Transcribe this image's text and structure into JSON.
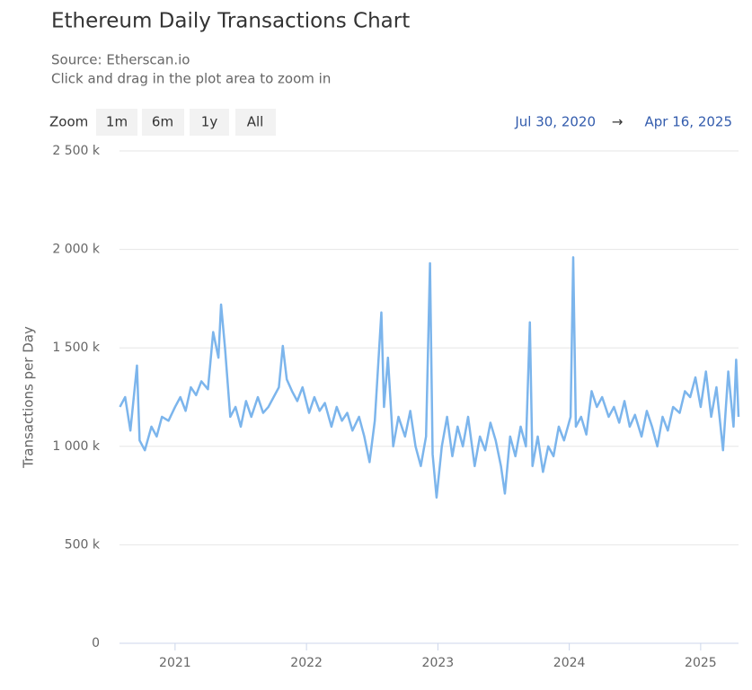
{
  "chart_data": {
    "type": "line",
    "title": "Ethereum Daily Transactions Chart",
    "subtitle": [
      "Source: Etherscan.io",
      "Click and drag in the plot area to zoom in"
    ],
    "zoom_label": "Zoom",
    "zoom_buttons": [
      "1m",
      "6m",
      "1y",
      "All"
    ],
    "range_from": "Jul 30, 2020",
    "range_separator": "→",
    "range_to": "Apr 16, 2025",
    "y_label": "Transactions per Day",
    "color": "#7cb5ec",
    "grid": true,
    "xlim": [
      2020.577,
      2025.288
    ],
    "xticks": [
      2021,
      2022,
      2023,
      2024,
      2025
    ],
    "ylim": [
      0,
      2500000
    ],
    "yticks": [
      0,
      {
        "value": 500000,
        "label": "500 k"
      },
      {
        "value": 1000000,
        "label": "1 000 k"
      },
      {
        "value": 1500000,
        "label": "1 500 k"
      },
      {
        "value": 2000000,
        "label": "2 000 k"
      },
      {
        "value": 2500000,
        "label": "2 500 k"
      }
    ],
    "x": [
      2020.58,
      2020.62,
      2020.66,
      2020.71,
      2020.73,
      2020.77,
      2020.82,
      2020.86,
      2020.9,
      2020.95,
      2021.0,
      2021.04,
      2021.08,
      2021.12,
      2021.16,
      2021.2,
      2021.25,
      2021.29,
      2021.33,
      2021.35,
      2021.38,
      2021.42,
      2021.46,
      2021.5,
      2021.54,
      2021.58,
      2021.63,
      2021.67,
      2021.71,
      2021.75,
      2021.79,
      2021.82,
      2021.85,
      2021.89,
      2021.93,
      2021.97,
      2022.02,
      2022.06,
      2022.1,
      2022.14,
      2022.19,
      2022.23,
      2022.27,
      2022.31,
      2022.35,
      2022.4,
      2022.44,
      2022.48,
      2022.52,
      2022.57,
      2022.59,
      2022.62,
      2022.66,
      2022.7,
      2022.75,
      2022.79,
      2022.83,
      2022.87,
      2022.91,
      2022.94,
      2022.96,
      2022.99,
      2023.03,
      2023.07,
      2023.11,
      2023.15,
      2023.19,
      2023.23,
      2023.28,
      2023.32,
      2023.36,
      2023.4,
      2023.44,
      2023.48,
      2023.51,
      2023.55,
      2023.59,
      2023.63,
      2023.67,
      2023.7,
      2023.72,
      2023.76,
      2023.8,
      2023.84,
      2023.88,
      2023.92,
      2023.96,
      2024.01,
      2024.03,
      2024.05,
      2024.09,
      2024.13,
      2024.17,
      2024.21,
      2024.25,
      2024.3,
      2024.34,
      2024.38,
      2024.42,
      2024.46,
      2024.5,
      2024.55,
      2024.59,
      2024.63,
      2024.67,
      2024.71,
      2024.75,
      2024.79,
      2024.84,
      2024.88,
      2024.92,
      2024.96,
      2025.0,
      2025.04,
      2025.08,
      2025.12,
      2025.17,
      2025.21,
      2025.25,
      2025.27,
      2025.288
    ],
    "values": [
      1200000,
      1250000,
      1080000,
      1410000,
      1030000,
      980000,
      1100000,
      1050000,
      1150000,
      1130000,
      1200000,
      1250000,
      1180000,
      1300000,
      1260000,
      1330000,
      1290000,
      1580000,
      1450000,
      1720000,
      1500000,
      1150000,
      1200000,
      1100000,
      1230000,
      1150000,
      1250000,
      1170000,
      1200000,
      1250000,
      1300000,
      1510000,
      1340000,
      1280000,
      1230000,
      1300000,
      1170000,
      1250000,
      1180000,
      1220000,
      1100000,
      1200000,
      1130000,
      1170000,
      1080000,
      1150000,
      1050000,
      920000,
      1130000,
      1680000,
      1200000,
      1450000,
      1000000,
      1150000,
      1050000,
      1180000,
      1000000,
      900000,
      1050000,
      1930000,
      960000,
      740000,
      1000000,
      1150000,
      950000,
      1100000,
      1000000,
      1150000,
      900000,
      1050000,
      980000,
      1120000,
      1030000,
      900000,
      760000,
      1050000,
      950000,
      1100000,
      1000000,
      1630000,
      900000,
      1050000,
      870000,
      1000000,
      950000,
      1100000,
      1030000,
      1150000,
      1960000,
      1100000,
      1150000,
      1060000,
      1280000,
      1200000,
      1250000,
      1150000,
      1200000,
      1120000,
      1230000,
      1100000,
      1160000,
      1050000,
      1180000,
      1100000,
      1000000,
      1150000,
      1080000,
      1200000,
      1170000,
      1280000,
      1250000,
      1350000,
      1200000,
      1380000,
      1150000,
      1300000,
      980000,
      1380000,
      1100000,
      1440000,
      1150000
    ]
  }
}
